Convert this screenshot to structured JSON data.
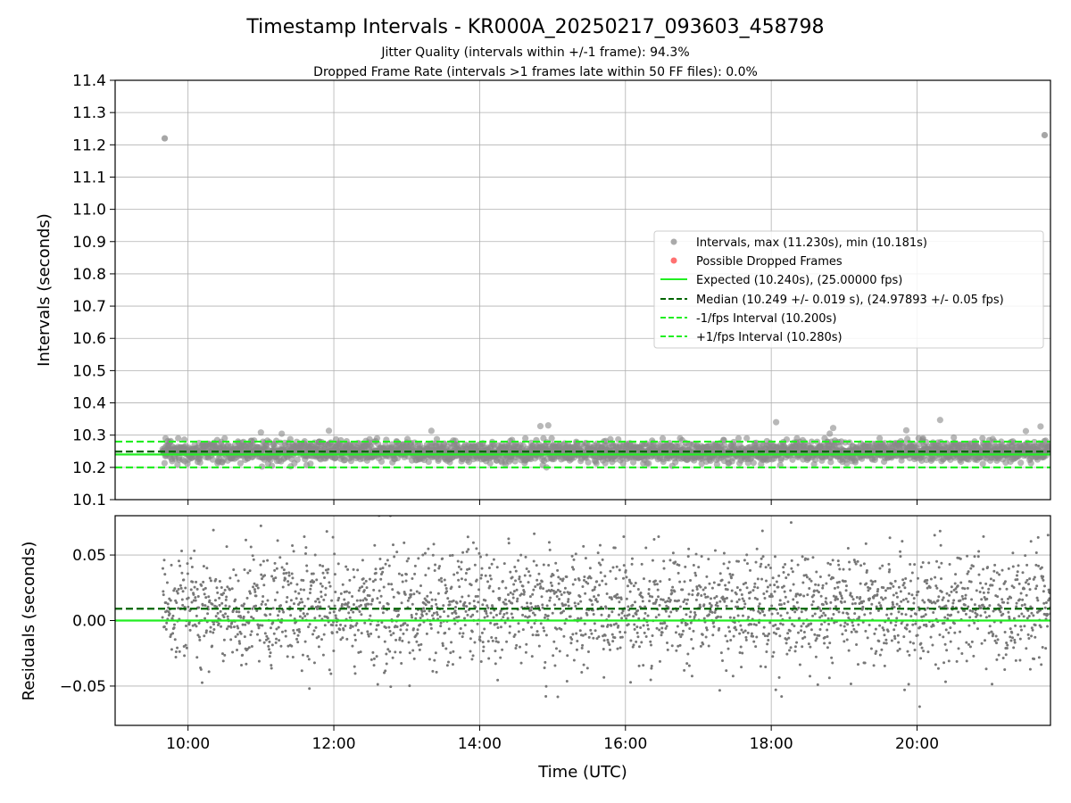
{
  "chart_data": {
    "title": "Timestamp Intervals - KR000A_20250217_093603_458798",
    "subtitle_lines": [
      "Jitter Quality (intervals within +/-1 frame): 94.3%",
      "Dropped Frame Rate (intervals >1 frames late within 50 FF files): 0.0%"
    ],
    "x": {
      "label": "Time (UTC)",
      "range_hours": [
        9.0,
        21.83
      ],
      "ticks": [
        10,
        12,
        14,
        16,
        18,
        20
      ],
      "tick_labels": [
        "10:00",
        "12:00",
        "14:00",
        "16:00",
        "18:00",
        "20:00"
      ],
      "data_range_hours": [
        9.65,
        21.83
      ]
    },
    "panels": [
      {
        "name": "intervals",
        "type": "scatter",
        "ylabel": "Intervals (seconds)",
        "ylim": [
          10.1,
          11.4
        ],
        "yticks": [
          10.1,
          10.2,
          10.3,
          10.4,
          10.5,
          10.6,
          10.7,
          10.8,
          10.9,
          11.0,
          11.1,
          11.2,
          11.3,
          11.4
        ],
        "ytick_labels": [
          "10.1",
          "10.2",
          "10.3",
          "10.4",
          "10.5",
          "10.6",
          "10.7",
          "10.8",
          "10.9",
          "11.0",
          "11.1",
          "11.2",
          "11.3",
          "11.4"
        ],
        "grid": true,
        "series": [
          {
            "name": "Intervals, max (11.230s), min (10.181s)",
            "kind": "scatter",
            "color": "#888888",
            "band_center": 10.249,
            "band_spread": 0.025,
            "outliers": [
              {
                "t": 9.68,
                "y": 11.22
              },
              {
                "t": 21.75,
                "y": 11.23
              }
            ]
          },
          {
            "name": "Possible Dropped Frames",
            "kind": "scatter",
            "color": "#ff4d4d",
            "points": []
          },
          {
            "name": "Expected (10.240s), (25.00000 fps)",
            "kind": "hline",
            "y": 10.24,
            "color": "#22ee22",
            "style": "solid"
          },
          {
            "name": "Median (10.249 +/- 0.019 s), (24.97893 +/- 0.05 fps)",
            "kind": "hline",
            "y": 10.249,
            "color": "#006400",
            "style": "dashed"
          },
          {
            "name": "-1/fps Interval (10.200s)",
            "kind": "hline",
            "y": 10.2,
            "color": "#22ee22",
            "style": "dashed"
          },
          {
            "name": "+1/fps Interval (10.280s)",
            "kind": "hline",
            "y": 10.28,
            "color": "#22ee22",
            "style": "dashed"
          }
        ],
        "legend": "center-right"
      },
      {
        "name": "residuals",
        "type": "scatter",
        "ylabel": "Residuals (seconds)",
        "ylim": [
          -0.08,
          0.08
        ],
        "yticks": [
          -0.05,
          0.0,
          0.05
        ],
        "ytick_labels": [
          "−0.05",
          "0.00",
          "0.05"
        ],
        "grid": true,
        "series": [
          {
            "kind": "scatter",
            "color": "#777777",
            "center": 0.009,
            "spread": 0.022
          },
          {
            "kind": "hline",
            "y": 0.0,
            "color": "#22ee22",
            "style": "solid"
          },
          {
            "kind": "hline",
            "y": 0.009,
            "color": "#006400",
            "style": "dashed"
          }
        ]
      }
    ]
  }
}
